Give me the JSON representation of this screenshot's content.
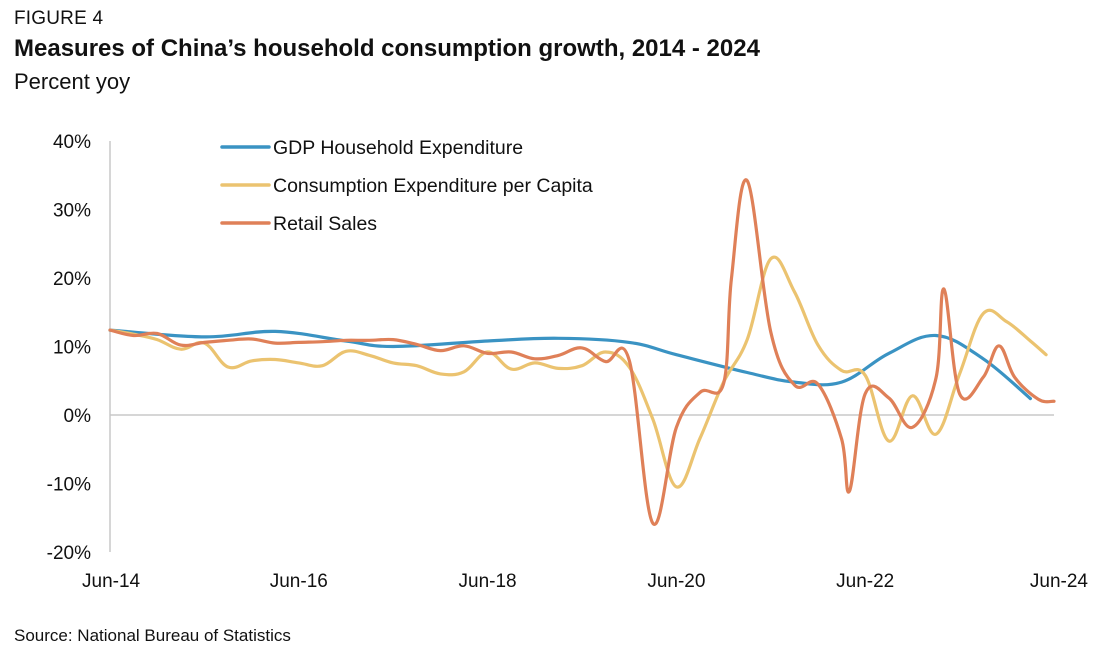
{
  "figure_label": "FIGURE 4",
  "source": "Source: National Bureau of Statistics",
  "chart_data": {
    "type": "line",
    "title": "Measures of China’s household consumption growth, 2014 - 2024",
    "subtitle": "Percent yoy",
    "xlabel": "",
    "ylabel": "",
    "x_range": [
      "2014-06",
      "2024-06"
    ],
    "ylim": [
      -20,
      40
    ],
    "y_ticks": [
      -20,
      -10,
      0,
      10,
      20,
      30,
      40
    ],
    "y_tick_labels": [
      "-20%",
      "-10%",
      "0%",
      "10%",
      "20%",
      "30%",
      "40%"
    ],
    "x_ticks": [
      "2014-06",
      "2016-06",
      "2018-06",
      "2020-06",
      "2022-06",
      "2024-06"
    ],
    "x_tick_labels": [
      "Jun-14",
      "Jun-16",
      "Jun-18",
      "Jun-20",
      "Jun-22",
      "Jun-24"
    ],
    "grid": false,
    "zero_line": true,
    "legend_position": "top-left",
    "series": [
      {
        "name": "GDP Household Expenditure",
        "color": "#3a93c3",
        "points": [
          [
            "2014-06",
            12.4
          ],
          [
            "2015-06",
            11.4
          ],
          [
            "2016-03",
            12.2
          ],
          [
            "2016-12",
            10.8
          ],
          [
            "2017-06",
            10.0
          ],
          [
            "2018-06",
            10.8
          ],
          [
            "2019-03",
            11.2
          ],
          [
            "2019-12",
            10.6
          ],
          [
            "2020-06",
            8.8
          ],
          [
            "2021-03",
            6.2
          ],
          [
            "2021-09",
            4.8
          ],
          [
            "2022-03",
            4.8
          ],
          [
            "2022-09",
            9.0
          ],
          [
            "2023-03",
            11.6
          ],
          [
            "2023-09",
            8.2
          ],
          [
            "2024-03",
            2.4
          ]
        ]
      },
      {
        "name": "Consumption Expenditure per Capita",
        "color": "#ebc370",
        "points": [
          [
            "2014-06",
            12.4
          ],
          [
            "2014-09",
            11.8
          ],
          [
            "2014-12",
            11.0
          ],
          [
            "2015-03",
            9.6
          ],
          [
            "2015-06",
            10.5
          ],
          [
            "2015-09",
            7.0
          ],
          [
            "2015-12",
            7.9
          ],
          [
            "2016-03",
            8.1
          ],
          [
            "2016-06",
            7.6
          ],
          [
            "2016-09",
            7.2
          ],
          [
            "2016-12",
            9.3
          ],
          [
            "2017-03",
            8.7
          ],
          [
            "2017-06",
            7.6
          ],
          [
            "2017-09",
            7.2
          ],
          [
            "2017-12",
            6.0
          ],
          [
            "2018-03",
            6.3
          ],
          [
            "2018-06",
            9.2
          ],
          [
            "2018-09",
            6.7
          ],
          [
            "2018-12",
            7.6
          ],
          [
            "2019-03",
            6.8
          ],
          [
            "2019-06",
            7.2
          ],
          [
            "2019-09",
            9.2
          ],
          [
            "2019-12",
            7.0
          ],
          [
            "2020-03",
            -0.6
          ],
          [
            "2020-06",
            -10.5
          ],
          [
            "2020-09",
            -3.4
          ],
          [
            "2020-12",
            4.8
          ],
          [
            "2021-03",
            11.0
          ],
          [
            "2021-06",
            22.8
          ],
          [
            "2021-09",
            18.0
          ],
          [
            "2021-12",
            10.2
          ],
          [
            "2022-03",
            6.5
          ],
          [
            "2022-06",
            5.8
          ],
          [
            "2022-09",
            -3.8
          ],
          [
            "2022-12",
            2.8
          ],
          [
            "2023-03",
            -2.8
          ],
          [
            "2023-06",
            6.0
          ],
          [
            "2023-09",
            14.8
          ],
          [
            "2023-12",
            13.6
          ],
          [
            "2024-03",
            10.8
          ],
          [
            "2024-05",
            8.8
          ]
        ]
      },
      {
        "name": "Retail Sales",
        "color": "#df8058",
        "points": [
          [
            "2014-06",
            12.4
          ],
          [
            "2014-09",
            11.6
          ],
          [
            "2014-12",
            11.9
          ],
          [
            "2015-03",
            10.2
          ],
          [
            "2015-06",
            10.6
          ],
          [
            "2015-09",
            10.9
          ],
          [
            "2015-12",
            11.1
          ],
          [
            "2016-03",
            10.5
          ],
          [
            "2016-06",
            10.6
          ],
          [
            "2016-09",
            10.7
          ],
          [
            "2016-12",
            10.9
          ],
          [
            "2017-03",
            10.9
          ],
          [
            "2017-06",
            11.0
          ],
          [
            "2017-09",
            10.3
          ],
          [
            "2017-12",
            9.4
          ],
          [
            "2018-03",
            10.1
          ],
          [
            "2018-06",
            9.0
          ],
          [
            "2018-09",
            9.2
          ],
          [
            "2018-12",
            8.2
          ],
          [
            "2019-03",
            8.7
          ],
          [
            "2019-06",
            9.8
          ],
          [
            "2019-09",
            7.8
          ],
          [
            "2019-12",
            8.0
          ],
          [
            "2020-03",
            -15.8
          ],
          [
            "2020-06",
            -1.8
          ],
          [
            "2020-09",
            3.3
          ],
          [
            "2020-12",
            4.6
          ],
          [
            "2021-01",
            20.0
          ],
          [
            "2021-03",
            34.2
          ],
          [
            "2021-06",
            12.1
          ],
          [
            "2021-09",
            4.4
          ],
          [
            "2021-12",
            4.5
          ],
          [
            "2022-03",
            -3.5
          ],
          [
            "2022-04",
            -11.1
          ],
          [
            "2022-06",
            3.1
          ],
          [
            "2022-09",
            2.5
          ],
          [
            "2022-12",
            -1.8
          ],
          [
            "2023-03",
            5.4
          ],
          [
            "2023-04",
            18.4
          ],
          [
            "2023-06",
            3.1
          ],
          [
            "2023-09",
            5.5
          ],
          [
            "2023-11",
            10.1
          ],
          [
            "2024-01",
            5.5
          ],
          [
            "2024-04",
            2.3
          ],
          [
            "2024-06",
            2.0
          ]
        ]
      }
    ]
  }
}
